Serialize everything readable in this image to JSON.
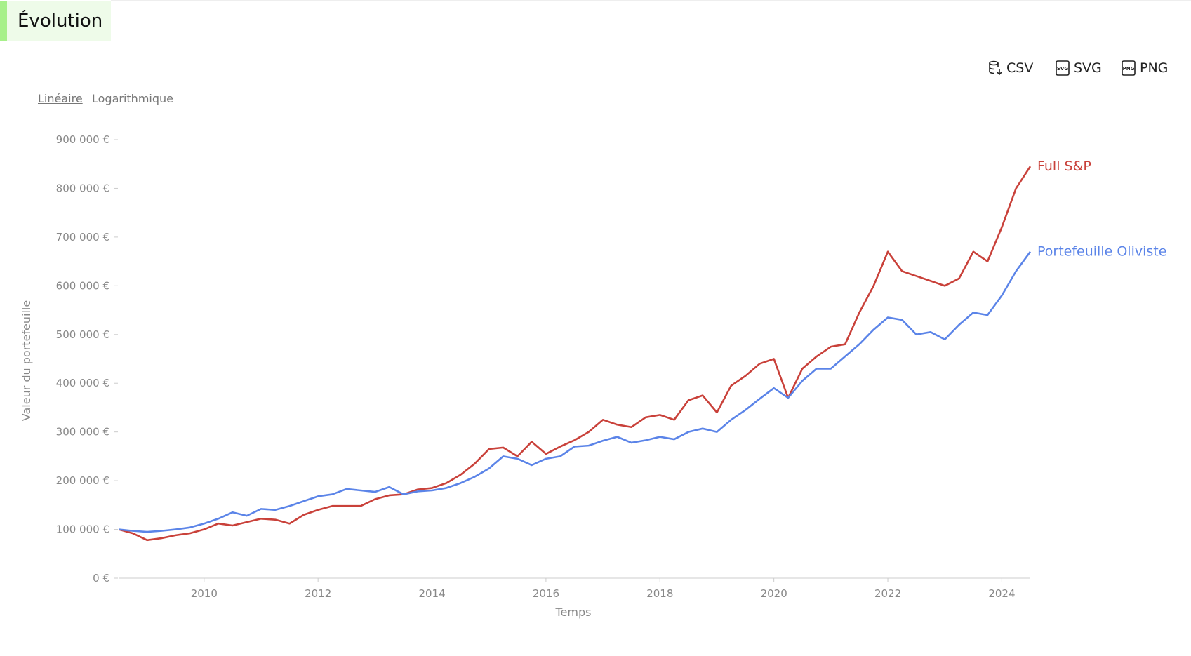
{
  "header": {
    "title": "Évolution"
  },
  "export": [
    "CSV",
    "SVG",
    "PNG"
  ],
  "scale_options": [
    "Linéaire",
    "Logarithmique"
  ],
  "chart_data": {
    "type": "line",
    "x_label": "Temps",
    "y_label": "Valeur du portefeuille",
    "x": [
      2008.5,
      2008.75,
      2009,
      2009.25,
      2009.5,
      2009.75,
      2010,
      2010.25,
      2010.5,
      2010.75,
      2011,
      2011.25,
      2011.5,
      2011.75,
      2012,
      2012.25,
      2012.5,
      2012.75,
      2013,
      2013.25,
      2013.5,
      2013.75,
      2014,
      2014.25,
      2014.5,
      2014.75,
      2015,
      2015.25,
      2015.5,
      2015.75,
      2016,
      2016.25,
      2016.5,
      2016.75,
      2017,
      2017.25,
      2017.5,
      2017.75,
      2018,
      2018.25,
      2018.5,
      2018.75,
      2019,
      2019.25,
      2019.5,
      2019.75,
      2020,
      2020.25,
      2020.5,
      2020.75,
      2021,
      2021.25,
      2021.5,
      2021.75,
      2022,
      2022.25,
      2022.5,
      2022.75,
      2023,
      2023.25,
      2023.5,
      2023.75,
      2024,
      2024.25,
      2024.5
    ],
    "series": [
      {
        "name": "Full S&P",
        "color": "#c9413a",
        "values": [
          100000,
          92000,
          78000,
          82000,
          88000,
          92000,
          100000,
          112000,
          108000,
          115000,
          122000,
          120000,
          112000,
          130000,
          140000,
          148000,
          148000,
          148000,
          162000,
          170000,
          172000,
          182000,
          185000,
          195000,
          212000,
          235000,
          265000,
          268000,
          250000,
          280000,
          255000,
          270000,
          283000,
          300000,
          325000,
          315000,
          310000,
          330000,
          335000,
          325000,
          365000,
          375000,
          340000,
          395000,
          415000,
          440000,
          450000,
          370000,
          430000,
          455000,
          475000,
          480000,
          545000,
          600000,
          670000,
          630000,
          620000,
          610000,
          600000,
          615000,
          670000,
          650000,
          720000,
          800000,
          845000
        ]
      },
      {
        "name": "Portefeuille Oliviste",
        "color": "#5b84e8",
        "values": [
          100000,
          97000,
          95000,
          97000,
          100000,
          104000,
          112000,
          122000,
          135000,
          128000,
          142000,
          140000,
          148000,
          158000,
          168000,
          172000,
          183000,
          180000,
          177000,
          187000,
          172000,
          178000,
          180000,
          185000,
          195000,
          208000,
          225000,
          250000,
          245000,
          232000,
          245000,
          250000,
          270000,
          272000,
          282000,
          290000,
          278000,
          283000,
          290000,
          285000,
          300000,
          307000,
          300000,
          325000,
          345000,
          368000,
          390000,
          370000,
          405000,
          430000,
          430000,
          455000,
          480000,
          510000,
          535000,
          530000,
          500000,
          505000,
          490000,
          520000,
          545000,
          540000,
          580000,
          630000,
          670000
        ]
      }
    ],
    "xlim": [
      2008.5,
      2024.5
    ],
    "xticks": [
      2010,
      2012,
      2014,
      2016,
      2018,
      2020,
      2022,
      2024
    ],
    "ylim": [
      0,
      900000
    ],
    "yticks": [
      {
        "value": 0,
        "label": "0 €"
      },
      {
        "value": 100000,
        "label": "100 000 €"
      },
      {
        "value": 200000,
        "label": "200 000 €"
      },
      {
        "value": 300000,
        "label": "300 000 €"
      },
      {
        "value": 400000,
        "label": "400 000 €"
      },
      {
        "value": 500000,
        "label": "500 000 €"
      },
      {
        "value": 600000,
        "label": "600 000 €"
      },
      {
        "value": 700000,
        "label": "700 000 €"
      },
      {
        "value": 800000,
        "label": "800 000 €"
      },
      {
        "value": 900000,
        "label": "900 000 €"
      }
    ],
    "grid": false
  }
}
